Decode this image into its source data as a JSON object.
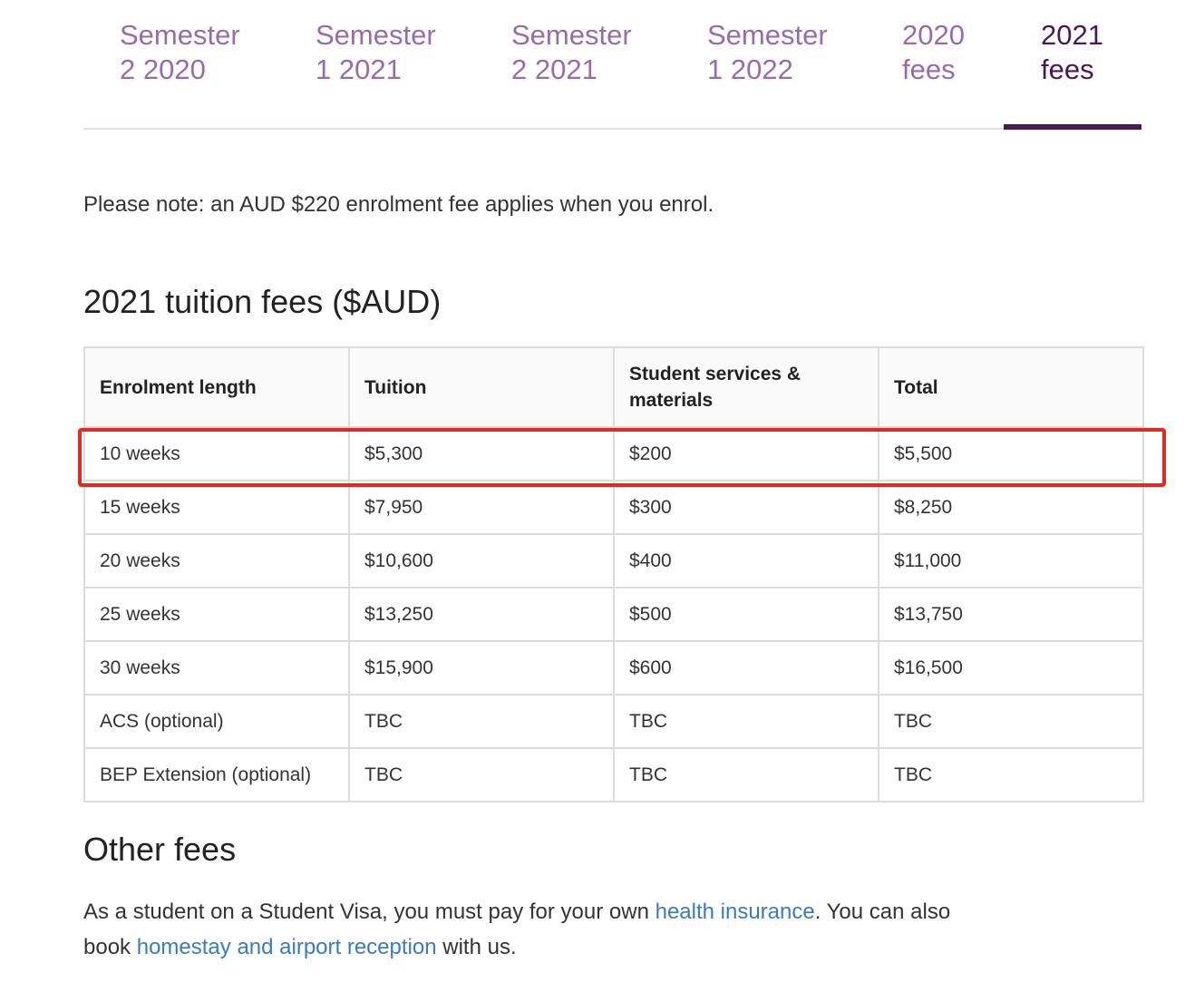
{
  "tabs": [
    {
      "line1": "Semester",
      "line2": "2 2020"
    },
    {
      "line1": "Semester",
      "line2": "1 2021"
    },
    {
      "line1": "Semester",
      "line2": "2 2021"
    },
    {
      "line1": "Semester",
      "line2": "1 2022"
    },
    {
      "line1": "2020",
      "line2": "fees"
    },
    {
      "line1": "2021",
      "line2": "fees"
    }
  ],
  "active_tab": "2021 fees",
  "note": "Please note: an AUD $220 enrolment fee applies when you enrol.",
  "tuition_heading": "2021 tuition fees ($AUD)",
  "table": {
    "headers": [
      "Enrolment length",
      "Tuition",
      "Student services & materials",
      "Total"
    ],
    "rows": [
      [
        "10 weeks",
        "$5,300",
        "$200",
        "$5,500"
      ],
      [
        "15 weeks",
        "$7,950",
        "$300",
        "$8,250"
      ],
      [
        "20 weeks",
        "$10,600",
        "$400",
        "$11,000"
      ],
      [
        "25 weeks",
        "$13,250",
        "$500",
        "$13,750"
      ],
      [
        "30 weeks",
        "$15,900",
        "$600",
        "$16,500"
      ],
      [
        "ACS (optional)",
        "TBC",
        "TBC",
        "TBC"
      ],
      [
        "BEP Extension (optional)",
        "TBC",
        "TBC",
        "TBC"
      ]
    ]
  },
  "other_heading": "Other fees",
  "other": {
    "text1": "As a student on a Student Visa, you must pay for your own ",
    "link1": "health insurance",
    "text2": ". You can also book ",
    "link2": "homestay and airport reception",
    "text3": " with us."
  },
  "colors": {
    "tab_inactive": "#9a6bab",
    "tab_active": "#4b1857",
    "link": "#3a7bbf",
    "highlight_box": "#e8281f"
  }
}
